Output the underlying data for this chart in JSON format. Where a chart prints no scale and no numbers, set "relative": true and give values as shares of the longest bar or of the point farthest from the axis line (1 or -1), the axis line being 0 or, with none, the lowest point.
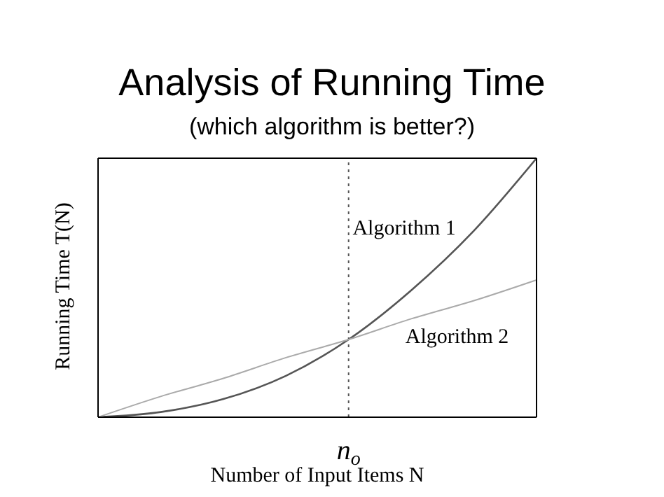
{
  "chart_data": {
    "type": "line",
    "title": "Analysis of Running Time",
    "subtitle": "(which algorithm is better?)",
    "xlabel": "Number of Input Items N",
    "ylabel": "Running Time T(N)",
    "relative": true,
    "categories": [
      null,
      null,
      null,
      null,
      null,
      null,
      null,
      null
    ],
    "series": [
      {
        "name": "Algorithm 1",
        "color": "#555555",
        "values": [
          0,
          0.02,
          0.07,
          0.16,
          0.3,
          0.49,
          0.72,
          1
        ]
      },
      {
        "name": "Algorithm 2",
        "color": "#aaaaaa",
        "values": [
          0,
          0.08,
          0.15,
          0.23,
          0.3,
          0.38,
          0.45,
          0.53
        ]
      }
    ],
    "annotations": [
      "n$_{o}$"
    ],
    "grid": false,
    "legend": false,
    "marker": "none",
    "line_style": "solid"
  }
}
